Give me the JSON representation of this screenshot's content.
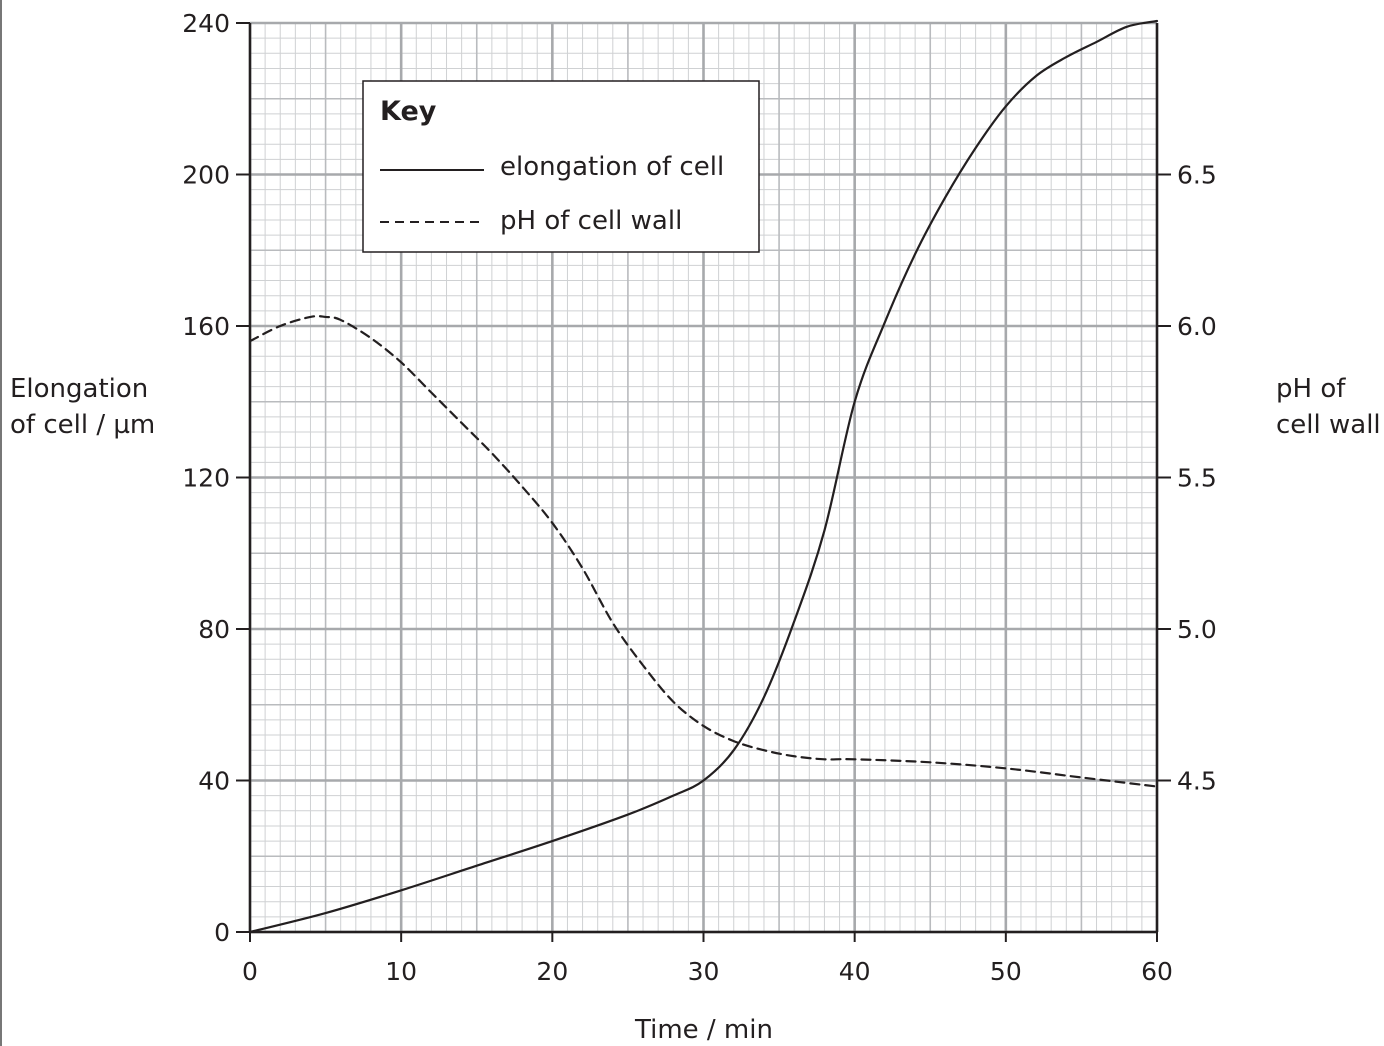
{
  "chart_data": {
    "type": "line",
    "title": "",
    "xlabel": "Time / min",
    "ylabel_left": [
      "Elongation",
      "of cell / µm"
    ],
    "ylabel_right": [
      "pH of",
      "cell wall"
    ],
    "xlim": [
      0,
      60
    ],
    "ylim_left": [
      0,
      240
    ],
    "ylim_right": [
      4.0,
      7.0
    ],
    "x_ticks": [
      0,
      10,
      20,
      30,
      40,
      50,
      60
    ],
    "x_tick_labels": [
      "0",
      "10",
      "20",
      "30",
      "40",
      "50",
      "60"
    ],
    "y_left_ticks": [
      0,
      40,
      80,
      120,
      160,
      200,
      240
    ],
    "y_left_tick_labels": [
      "0",
      "40",
      "80",
      "120",
      "160",
      "200",
      "240"
    ],
    "y_right_ticks": [
      4.5,
      5.0,
      5.5,
      6.0,
      6.5
    ],
    "y_right_tick_labels": [
      "4.5",
      "5.0",
      "5.5",
      "6.0",
      "6.5"
    ],
    "grid": true,
    "legend": {
      "title": "Key",
      "placement": "top-left",
      "entries": [
        "elongation of cell",
        "pH of cell wall"
      ]
    },
    "series": [
      {
        "name": "elongation of cell",
        "axis": "left",
        "style": "solid",
        "x": [
          0,
          5,
          10,
          15,
          20,
          25,
          28,
          30,
          32,
          34,
          36,
          38,
          40,
          42,
          44,
          46,
          48,
          50,
          52,
          54,
          56,
          58,
          60
        ],
        "y": [
          0,
          5,
          11,
          17.5,
          24,
          31,
          36,
          40,
          48,
          62,
          82,
          106,
          140,
          161,
          179,
          194,
          207,
          218,
          226,
          231,
          235,
          239,
          242
        ]
      },
      {
        "name": "pH of cell wall",
        "axis": "right",
        "style": "dashed",
        "x": [
          0,
          2,
          4,
          5,
          6,
          8,
          10,
          12,
          14,
          16,
          18,
          20,
          22,
          24,
          26,
          28,
          30,
          32,
          34,
          36,
          38,
          40,
          45,
          50,
          55,
          60
        ],
        "y": [
          5.95,
          6.0,
          6.03,
          6.03,
          6.02,
          5.96,
          5.88,
          5.78,
          5.68,
          5.58,
          5.47,
          5.35,
          5.2,
          5.02,
          4.88,
          4.76,
          4.68,
          4.63,
          4.6,
          4.58,
          4.57,
          4.57,
          4.56,
          4.54,
          4.51,
          4.48
        ]
      }
    ]
  }
}
